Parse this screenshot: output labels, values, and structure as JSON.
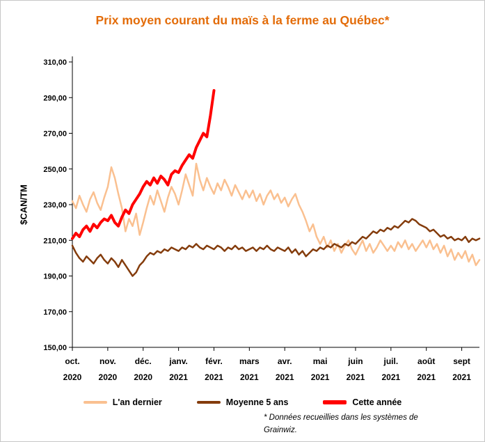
{
  "chart_data": {
    "type": "line",
    "title": "Prix moyen courant du maïs à la ferme au Québec*",
    "ylabel": "$CAN/TM",
    "ylim": [
      150,
      310
    ],
    "y_step": 20,
    "grid": false,
    "legend_position": "bottom",
    "y_ticks": [
      "150,00",
      "170,00",
      "190,00",
      "210,00",
      "230,00",
      "250,00",
      "270,00",
      "290,00",
      "310,00"
    ],
    "x_ticks": [
      [
        "oct.",
        "2020"
      ],
      [
        "nov.",
        "2020"
      ],
      [
        "déc.",
        "2020"
      ],
      [
        "janv.",
        "2021"
      ],
      [
        "févr.",
        "2021"
      ],
      [
        "mars",
        "2021"
      ],
      [
        "avr.",
        "2021"
      ],
      [
        "mai",
        "2021"
      ],
      [
        "juin",
        "2021"
      ],
      [
        "juil.",
        "2021"
      ],
      [
        "août",
        "2021"
      ],
      [
        "sept",
        "2021"
      ]
    ],
    "x_count": 116,
    "points_per_month": 10,
    "series": [
      {
        "id": "lan-dernier",
        "name": "L'an dernier",
        "color": "#FAC090",
        "width": 2.5,
        "values": [
          232,
          228,
          235,
          230,
          226,
          233,
          237,
          231,
          227,
          234,
          240,
          251,
          245,
          236,
          228,
          215,
          222,
          218,
          225,
          213,
          220,
          228,
          235,
          230,
          238,
          232,
          226,
          234,
          240,
          236,
          230,
          238,
          247,
          241,
          235,
          253,
          244,
          238,
          245,
          240,
          236,
          242,
          238,
          244,
          240,
          235,
          241,
          237,
          233,
          238,
          234,
          238,
          232,
          236,
          230,
          235,
          238,
          233,
          236,
          231,
          234,
          229,
          233,
          236,
          230,
          226,
          221,
          215,
          219,
          212,
          208,
          212,
          206,
          210,
          204,
          208,
          203,
          207,
          210,
          205,
          202,
          206,
          210,
          204,
          208,
          203,
          206,
          210,
          207,
          204,
          207,
          204,
          209,
          206,
          210,
          205,
          208,
          204,
          207,
          210,
          206,
          210,
          205,
          208,
          203,
          207,
          201,
          205,
          199,
          203,
          200,
          204,
          198,
          202,
          196,
          199
        ]
      },
      {
        "id": "moyenne-5-ans",
        "name": "Moyenne 5 ans",
        "color": "#843C0C",
        "width": 2.5,
        "values": [
          207,
          203,
          200,
          198,
          201,
          199,
          197,
          200,
          202,
          199,
          197,
          200,
          198,
          195,
          199,
          196,
          193,
          190,
          192,
          196,
          198,
          201,
          203,
          202,
          204,
          203,
          205,
          204,
          206,
          205,
          204,
          206,
          205,
          207,
          206,
          208,
          206,
          205,
          207,
          206,
          205,
          207,
          206,
          204,
          206,
          205,
          207,
          205,
          206,
          204,
          205,
          206,
          204,
          206,
          205,
          207,
          205,
          204,
          206,
          205,
          204,
          206,
          203,
          205,
          202,
          204,
          201,
          203,
          205,
          204,
          206,
          205,
          207,
          206,
          208,
          207,
          206,
          208,
          207,
          209,
          208,
          210,
          212,
          211,
          213,
          215,
          214,
          216,
          215,
          217,
          216,
          218,
          217,
          219,
          221,
          220,
          222,
          221,
          219,
          218,
          217,
          215,
          216,
          214,
          212,
          213,
          211,
          212,
          210,
          211,
          210,
          212,
          209,
          211,
          210,
          211
        ]
      },
      {
        "id": "cette-annee",
        "name": "Cette année",
        "color": "#FF0000",
        "width": 4,
        "values": [
          211,
          214,
          212,
          216,
          218,
          215,
          219,
          217,
          220,
          222,
          221,
          224,
          220,
          218,
          223,
          227,
          225,
          230,
          233,
          236,
          240,
          243,
          241,
          245,
          242,
          246,
          244,
          241,
          247,
          249,
          248,
          252,
          255,
          258,
          256,
          262,
          266,
          270,
          268,
          280,
          294
        ]
      }
    ]
  },
  "footnote": {
    "text": "* Données recueillies dans les systèmes de Grainwiz."
  }
}
